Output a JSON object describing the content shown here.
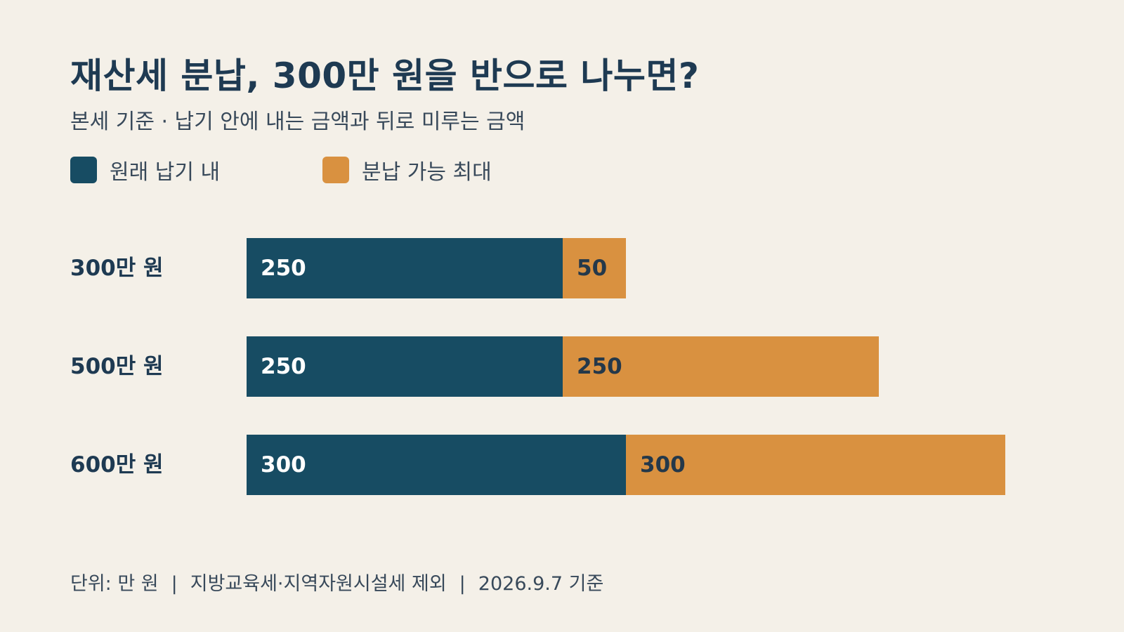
{
  "title": "재산세 분납, 300만 원을 반으로 나누면?",
  "subtitle": "본세 기준 · 납기 안에 내는 금액과 뒤로 미루는 금액",
  "colors": {
    "background": "#f4f0e8",
    "text": "#1e3a52",
    "series_1": "#174c63",
    "series_2": "#d99140",
    "label_on_dark": "#ffffff",
    "label_on_light": "#24384a"
  },
  "chart_data": {
    "type": "bar",
    "orientation": "horizontal",
    "stacked": true,
    "categories": [
      "300만 원",
      "500만 원",
      "600만 원"
    ],
    "series": [
      {
        "name": "원래 납기 내",
        "values": [
          250,
          250,
          300
        ]
      },
      {
        "name": "분납 가능 최대",
        "values": [
          50,
          250,
          300
        ]
      }
    ],
    "title": "재산세 분납, 300만 원을 반으로 나누면?",
    "subtitle": "본세 기준 · 납기 안에 내는 금액과 뒤로 미루는 금액",
    "xlim": [
      0,
      600
    ],
    "grid": false,
    "legend_position": "top-left",
    "data_labels": true,
    "unit": "만 원"
  },
  "footer": {
    "unit": "단위: 만 원",
    "separator": "|",
    "note": "지방교육세·지역자원시설세 제외",
    "date": "2026.9.7 기준"
  }
}
